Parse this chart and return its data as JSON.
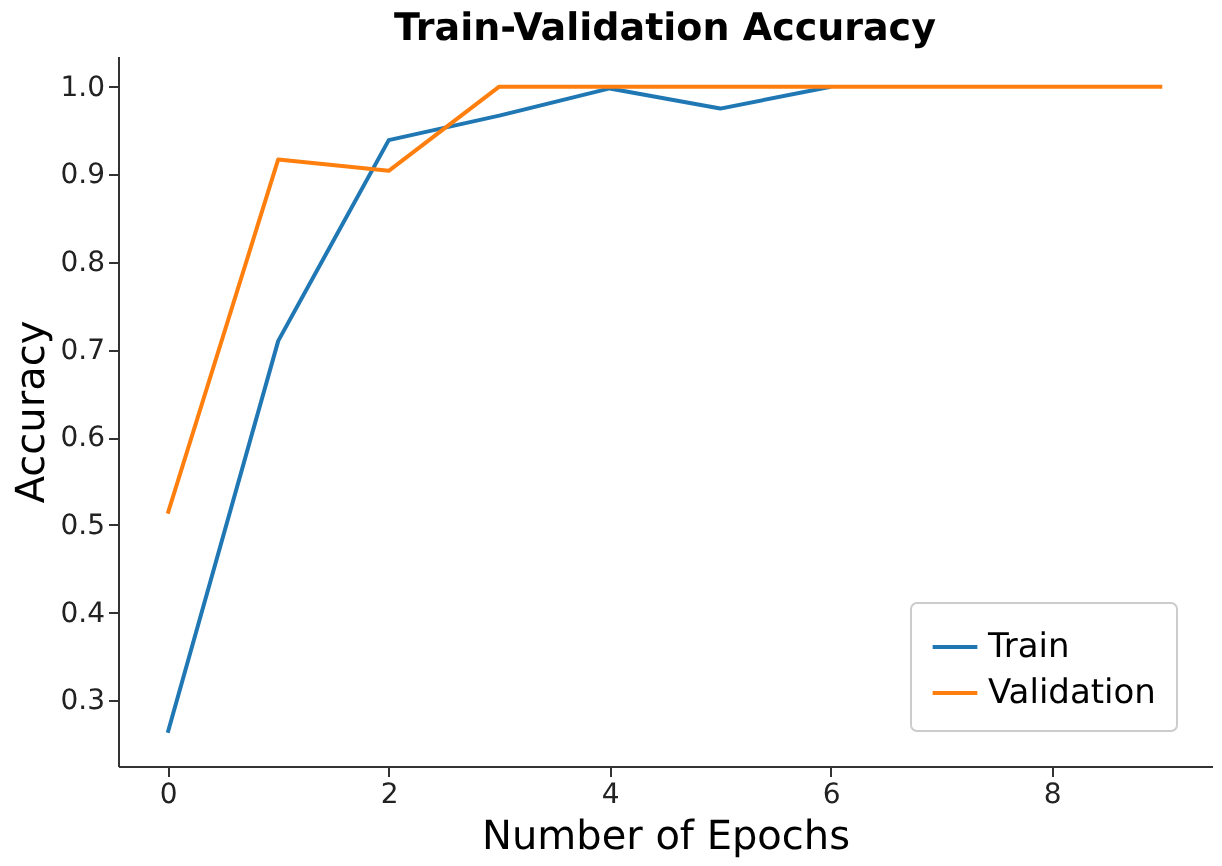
{
  "chart_data": {
    "type": "line",
    "title": "Train-Validation Accuracy",
    "xlabel": "Number of Epochs",
    "ylabel": "Accuracy",
    "x": [
      0,
      1,
      2,
      3,
      4,
      5,
      6,
      7,
      8,
      9
    ],
    "series": [
      {
        "name": "Train",
        "color": "#1f77b4",
        "values": [
          0.263,
          0.71,
          0.939,
          0.967,
          0.998,
          0.975,
          1.0,
          null,
          null,
          null
        ]
      },
      {
        "name": "Validation",
        "color": "#ff7f0e",
        "values": [
          0.513,
          0.917,
          0.904,
          1.0,
          1.0,
          1.0,
          1.0,
          1.0,
          1.0,
          1.0
        ]
      }
    ],
    "xlim": [
      -0.45,
      9.45
    ],
    "xticks": [
      0,
      2,
      4,
      6,
      8
    ],
    "ylim": [
      0.225,
      1.035
    ],
    "yticks": [
      0.3,
      0.4,
      0.5,
      0.6,
      0.7,
      0.8,
      0.9,
      {
        "value": 1.0,
        "label": "1.0"
      }
    ],
    "grid": false,
    "legend": "bottom right",
    "marker": "none",
    "line_style": "solid"
  }
}
